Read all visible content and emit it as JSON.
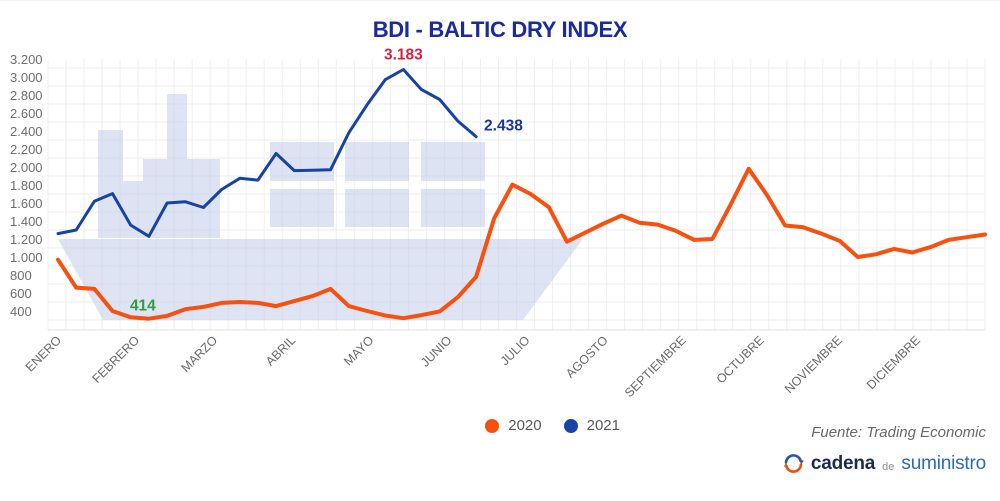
{
  "title": "BDI - BALTIC DRY INDEX",
  "chart_data": {
    "type": "line",
    "title": "BDI - BALTIC DRY INDEX",
    "categories": [
      "ENERO",
      "FEBRERO",
      "MARZO",
      "ABRIL",
      "MAYO",
      "JUNIO",
      "JULIO",
      "AGOSTO",
      "SEPTIEMBRE",
      "OCTUBRE",
      "NOVIEMBRE",
      "DICIEMBRE"
    ],
    "y_ticks": [
      "3.200",
      "3.000",
      "2.800",
      "2.600",
      "2.400",
      "2.200",
      "2.000",
      "1.800",
      "1.600",
      "1.400",
      "1.200",
      "1.000",
      "800",
      "600",
      "400"
    ],
    "ylim": [
      400,
      3200
    ],
    "grid": true,
    "legend_position": "bottom",
    "series": [
      {
        "name": "2020",
        "color": "#f8500f",
        "values": [
          1070,
          760,
          745,
          500,
          430,
          414,
          445,
          520,
          545,
          590,
          600,
          590,
          555,
          610,
          665,
          745,
          555,
          500,
          450,
          420,
          455,
          495,
          655,
          880,
          1530,
          1905,
          1800,
          1655,
          1270,
          1370,
          1470,
          1560,
          1480,
          1460,
          1390,
          1290,
          1300,
          1680,
          2080,
          1790,
          1450,
          1430,
          1360,
          1280,
          1100,
          1130,
          1190,
          1150,
          1210,
          1290,
          1320,
          1350
        ]
      },
      {
        "name": "2021",
        "color": "#1742a6",
        "values": [
          1360,
          1400,
          1720,
          1805,
          1455,
          1330,
          1700,
          1715,
          1650,
          1850,
          1975,
          1955,
          2250,
          2060,
          2065,
          2070,
          2480,
          2790,
          3070,
          3183,
          2960,
          2850,
          2610,
          2438
        ]
      }
    ],
    "annotations": [
      {
        "text": "3.183",
        "color": "#d42445",
        "series": "2021",
        "kind": "max"
      },
      {
        "text": "2.438",
        "color": "#1b35a3",
        "series": "2021",
        "kind": "last"
      },
      {
        "text": "414",
        "color": "#2f9e41",
        "series": "2020",
        "kind": "min"
      }
    ]
  },
  "legend": {
    "items": [
      {
        "label": "2020",
        "color": "#f8500f"
      },
      {
        "label": "2021",
        "color": "#1742a6"
      }
    ]
  },
  "footer": {
    "source": "Fuente: Trading Economic"
  },
  "logo": {
    "word1": "cadena",
    "word2": "de",
    "word3": "suministro"
  }
}
